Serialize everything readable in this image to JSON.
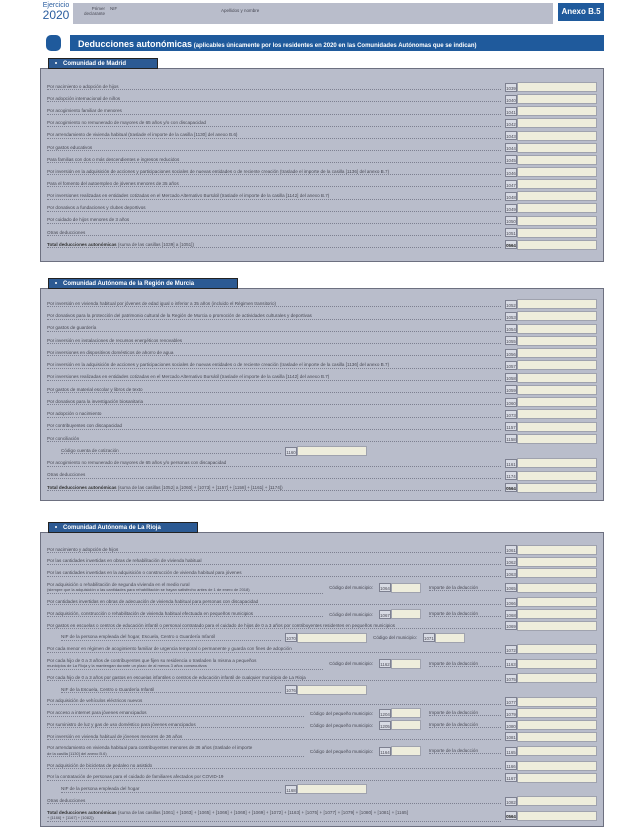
{
  "header": {
    "ejercicio_label": "Ejercicio",
    "year": "2020",
    "declarant_label": "Primer declarante",
    "nif_label": "NIF",
    "name_label": "Apellidos y nombre",
    "anexo": "Anexo B.5"
  },
  "title": {
    "main": "Deducciones autonómicas",
    "sub": " (aplicables únicamente por los residentes en 2020 en las Comunidades Autónomas que se indican)"
  },
  "colors": {
    "accent": "#1f5a9c",
    "panel": "#c3c7d3",
    "input": "#eeeddc"
  },
  "labels": {
    "municipio": "Código del municipio:",
    "pequeno": "Código del pequeño municipio:",
    "importe": "Importe de la deducción"
  },
  "sections": [
    {
      "name": "Comunidad de Madrid",
      "rows": [
        {
          "text": "Por nacimiento o adopción de hijos",
          "code": "1039"
        },
        {
          "text": "Por adopción internacional de niños",
          "code": "1040"
        },
        {
          "text": "Por acogimiento familiar de menores",
          "code": "1041"
        },
        {
          "text": "Por acogimiento no remunerado de mayores de 65 años y/o con discapacidad",
          "code": "1042"
        },
        {
          "text": "Por arrendamiento de vivienda habitual (traslade el importe de la casilla [1130] del anexo B.6)",
          "code": "1043"
        },
        {
          "text": "Por gastos educativos",
          "code": "1044"
        },
        {
          "text": "Para familias con dos o más descendientes e ingresos reducidos",
          "code": "1045"
        },
        {
          "text": "Por inversión en la adquisición de acciones y participaciones sociales de nuevas entidades o de reciente creación (traslade el importe de la casilla [1136] del anexo B.7)",
          "code": "1046"
        },
        {
          "text": "Para el fomento del autoempleo de jóvenes menores de 35 años",
          "code": "1047"
        },
        {
          "text": "Por inversiones realizadas en entidades cotizadas en el Mercado Alternativo Bursátil (traslade el importe de la casilla [1142] del anexo B.7)",
          "code": "1048"
        },
        {
          "text": "Por donativos a fundaciones y clubes deportivos",
          "code": "1049"
        },
        {
          "text": "Por cuidado de hijos menores de 3 años",
          "code": "1050"
        },
        {
          "text": "Otras deducciones",
          "code": "1051"
        },
        {
          "bold": "Total deducciones autonómicas",
          "text": " (suma de las casillas [1039] a [1051])",
          "code": "0564",
          "total": true
        }
      ]
    },
    {
      "name": "Comunidad Autónoma de la Región de Murcia",
      "rows": [
        {
          "text": "Por inversión en vivienda habitual por jóvenes de edad igual o inferior a 35 años (incluido el Régimen transitorio)",
          "code": "1052"
        },
        {
          "text": "Por donativos para la protección del patrimonio cultural de la Región de Murcia o promoción de actividades culturales y deportivas",
          "code": "1053"
        },
        {
          "text": "Por gastos de guardería",
          "code": "1054"
        },
        {
          "text": "Por inversión en instalaciones de recursos energéticos renovables",
          "code": "1055"
        },
        {
          "text": "Por inversiones en dispositivos domésticos de ahorro de agua",
          "code": "1056"
        },
        {
          "text": "Por inversión en la adquisición de acciones y participaciones sociales de nuevas entidades o de reciente creación (traslade el importe de la casilla [1136] del anexo B.7)",
          "code": "1057"
        },
        {
          "text": "Por inversiones realizadas en entidades cotizadas en el Mercado Alternativo Bursátil  (traslade el importe de la casilla [1142] del anexo B.7)",
          "code": "1058"
        },
        {
          "text": "Por gastos de material escolar y libros de texto",
          "code": "1059"
        },
        {
          "text": "Por donativos para la investigación biosanitaria",
          "code": "1060"
        },
        {
          "text": "Por adopción o nacimiento",
          "code": "1073"
        },
        {
          "text": "Por contribuyentes con discapacidad",
          "code": "1157"
        },
        {
          "text": "Por conciliación",
          "code": "1158"
        },
        {
          "sub": true,
          "text": "Código cuenta de cotización",
          "code": "1160"
        },
        {
          "text": "Por acogimiento no remunerado de mayores de 65 años y/o personas con discapacidad",
          "code": "1161"
        },
        {
          "text": "Otras deducciones",
          "code": "1174"
        },
        {
          "bold": "Total deducciones autonómicas",
          "text": " (suma de las casillas [1052] a [1060] + [1073] + [1157] + [1158] + [1161] + [1174])",
          "code": "0564",
          "total": true
        }
      ]
    },
    {
      "name": "Comunidad Autónoma de La Rioja",
      "rows": [
        {
          "text": "Por nacimiento y adopción de hijos",
          "code": "1061"
        },
        {
          "text": "Por las cantidades invertidas en obras de rehabilitación de vivienda habitual",
          "code": "1062"
        },
        {
          "text": "Por las cantidades invertidas en la adquisición o construcción de vivienda habitual para jóvenes",
          "code": "1063"
        },
        {
          "text": "Por adquisición o rehabilitación de segunda vivienda en el medio rural",
          "note": "(siempre que la adquisición o las cantidades para rehabilitación se hayan satisfecho antes de 1 de enero de 2018)",
          "mid": "municipio",
          "midcode": "1064",
          "code": "1065"
        },
        {
          "text": "Por cantidades invertidas en obras de adecuación de vivienda habitual para personas con discapacidad",
          "code": "1066"
        },
        {
          "text": "Por adquisición, construcción o rehabilitación de vivienda habitual efectuada en pequeños municipios",
          "mid": "municipio",
          "midcode": "1067",
          "code": "1068"
        },
        {
          "text": "Por gastos en escuelas o centros de educación infantil o personal contratado para el cuidado de hijos de 0 a 3 años por contribuyentes residentes en pequeños municipios",
          "code": "1069"
        },
        {
          "sub": true,
          "text": "NIF de la persona empleada del hogar, Escuela, Centro o Guardería Infantil",
          "code": "1070",
          "mid": "municipio",
          "midcode": "1071"
        },
        {
          "text": "Por cada menor en régimen de acogimiento familiar de urgencia temporal o permanente y guarda con fines de adopción",
          "code": "1072"
        },
        {
          "text": "Por cada hijo de 0 a 3 años de contribuyentes que fijen su residencia o trasladen la misma a pequeños",
          "note": "municipios de La Rioja y la mantengan durante un plazo de al menos 3 años consecutivos",
          "mid": "municipio",
          "midcode": "1162",
          "code": "1163"
        },
        {
          "text": "Por cada hijo de 0 a 3 años por gastos en escuelas infantiles o centros de educación infantil de cualquier municipio de La Rioja",
          "code": "1075"
        },
        {
          "sub": true,
          "text": "NIF de la Escuela, Centro o Guardería Infantil",
          "code": "1076"
        },
        {
          "text": "Por adquisición de vehículos eléctricos nuevos",
          "code": "1077"
        },
        {
          "text": "Por acceso a internet para jóvenes emancipados",
          "mid": "pequeno",
          "midcode": "1204",
          "code": "1079"
        },
        {
          "text": "Por suministro de luz y gas de uso doméstico para jóvenes emancipados",
          "mid": "pequeno",
          "midcode": "1205",
          "code": "1080"
        },
        {
          "text": "Por inversión en vivienda habitual de jóvenes menores de 36 años",
          "code": "1081"
        },
        {
          "text": "Por arrendamiento en vivienda habitual para contribuyentes menores de 36 años (traslade el importe",
          "note": "de la casilla [1130] del anexo B.6)",
          "mid": "pequeno",
          "midcode": "1164",
          "code": "1165"
        },
        {
          "text": "Por adquisición de bicicletas de pedaleo no asistido",
          "code": "1166"
        },
        {
          "text": "Por la contratación de personas para el cuidado de familiares afectados por COVID-19",
          "code": "1167"
        },
        {
          "sub": true,
          "text": "NIF de la persona empleada del hogar",
          "code": "1168"
        },
        {
          "text": "Otras deducciones",
          "code": "1082"
        },
        {
          "bold": "Total deducciones autonómicas",
          "text": " (suma de las casillas [1061] + [1063] + [1065] + [1066] + [1068] + [1069] + [1072] + [1163] + [1075] + [1077] + [1079] + [1080] + [1081] + [1165]",
          "note": "+ [1166] + [1167] + [1082])",
          "code": "0564",
          "total": true
        }
      ]
    }
  ]
}
